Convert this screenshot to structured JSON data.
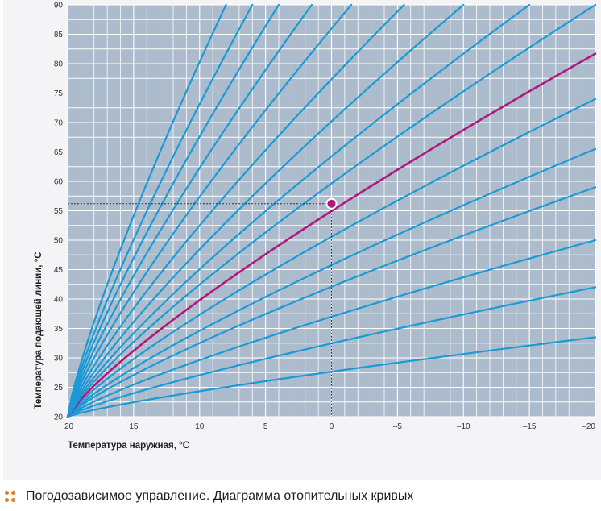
{
  "chart_data": {
    "type": "line",
    "xlabel": "Температура наружная, °С",
    "ylabel": "Температура подающей линии, °С",
    "xlim": [
      20,
      -20
    ],
    "ylim": [
      20,
      90
    ],
    "x_ticks": [
      "20",
      "15",
      "10",
      "5",
      "0",
      "–5",
      "–10",
      "–15",
      "–20"
    ],
    "y_ticks": [
      "20",
      "25",
      "30",
      "35",
      "40",
      "45",
      "50",
      "55",
      "60",
      "65",
      "70",
      "75",
      "80",
      "85",
      "90"
    ],
    "grid": true,
    "series_color": "#1a9ad6",
    "highlight_color": "#b0187c",
    "series": [
      {
        "x": [
          20,
          -20
        ],
        "y": [
          20,
          33.5
        ]
      },
      {
        "x": [
          20,
          -20
        ],
        "y": [
          20,
          42
        ]
      },
      {
        "x": [
          20,
          -20
        ],
        "y": [
          20,
          50
        ]
      },
      {
        "x": [
          20,
          -20
        ],
        "y": [
          20,
          59
        ]
      },
      {
        "x": [
          20,
          -20
        ],
        "y": [
          20,
          65.5
        ]
      },
      {
        "x": [
          20,
          -20
        ],
        "y": [
          20,
          74
        ]
      },
      {
        "x": [
          20,
          -20
        ],
        "y": [
          20,
          81.7
        ],
        "highlight": true
      },
      {
        "x": [
          20,
          -20
        ],
        "y": [
          20,
          90
        ]
      },
      {
        "x": [
          20,
          -15
        ],
        "y": [
          20,
          90
        ]
      },
      {
        "x": [
          20,
          -10
        ],
        "y": [
          20,
          90
        ]
      },
      {
        "x": [
          20,
          -5.5
        ],
        "y": [
          20,
          90
        ]
      },
      {
        "x": [
          20,
          -1.5
        ],
        "y": [
          20,
          90
        ]
      },
      {
        "x": [
          20,
          1.5
        ],
        "y": [
          20,
          90
        ]
      },
      {
        "x": [
          20,
          4
        ],
        "y": [
          20,
          90
        ]
      },
      {
        "x": [
          20,
          6
        ],
        "y": [
          20,
          90
        ]
      },
      {
        "x": [
          20,
          8
        ],
        "y": [
          20,
          90
        ]
      }
    ],
    "marker": {
      "x": 0,
      "y": 56.2
    }
  },
  "caption": {
    "text": "Погодозависимое управление. Диаграмма отопительных кривых"
  }
}
